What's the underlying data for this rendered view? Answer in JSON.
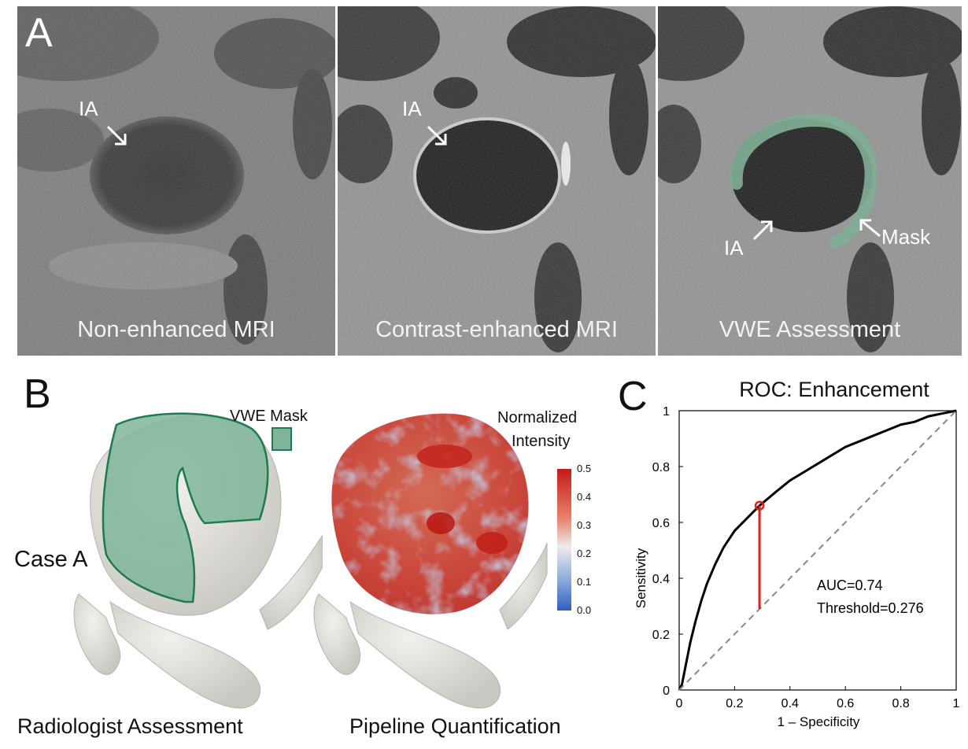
{
  "panel_a": {
    "letter": "A",
    "images": [
      {
        "caption": "Non-enhanced MRI",
        "arrow_label": "IA"
      },
      {
        "caption": "Contrast-enhanced MRI",
        "arrow_label": "IA"
      },
      {
        "caption": "VWE Assessment",
        "arrow_label": "IA",
        "mask_label": "Mask"
      }
    ]
  },
  "panel_b": {
    "letter": "B",
    "case_label": "Case A",
    "legend_label": "VWE Mask",
    "colorbar_title_1": "Normalized",
    "colorbar_title_2": "Intensity",
    "colorbar_ticks": [
      "0.5",
      "0.4",
      "0.3",
      "0.2",
      "0.1",
      "0.0"
    ],
    "left_caption": "Radiologist Assessment",
    "right_caption": "Pipeline Quantification",
    "colors": {
      "mask": "#7fb59a",
      "mask_edge": "#1f7a4f",
      "surface": "#e4e2dd",
      "high": "#c9302c",
      "low": "#4a78c8"
    }
  },
  "panel_c": {
    "letter": "C",
    "annotation_auc": "AUC=0.74",
    "annotation_threshold": "Threshold=0.276"
  },
  "chart_data": {
    "type": "line",
    "title": "ROC: Enhancement",
    "xlabel": "1 – Specificity",
    "ylabel": "Sensitivity",
    "xlim": [
      0,
      1
    ],
    "ylim": [
      0,
      1
    ],
    "xticks": [
      "0",
      "0.2",
      "0.4",
      "0.6",
      "0.8",
      "1"
    ],
    "yticks": [
      "0",
      "0.2",
      "0.4",
      "0.6",
      "0.8",
      "1"
    ],
    "series": [
      {
        "style": "solid",
        "color": "#000000",
        "x": [
          0,
          0.01,
          0.02,
          0.04,
          0.06,
          0.08,
          0.1,
          0.13,
          0.16,
          0.2,
          0.24,
          0.29,
          0.35,
          0.4,
          0.45,
          0.5,
          0.55,
          0.6,
          0.65,
          0.7,
          0.75,
          0.8,
          0.85,
          0.9,
          0.95,
          1.0
        ],
        "y": [
          0,
          0.02,
          0.07,
          0.17,
          0.25,
          0.32,
          0.38,
          0.45,
          0.51,
          0.57,
          0.61,
          0.66,
          0.71,
          0.75,
          0.78,
          0.81,
          0.84,
          0.87,
          0.89,
          0.91,
          0.93,
          0.95,
          0.96,
          0.98,
          0.99,
          1.0
        ]
      },
      {
        "style": "dashed",
        "color": "#888888",
        "x": [
          0,
          1
        ],
        "y": [
          0,
          1
        ]
      }
    ],
    "operating_point": {
      "x": 0.29,
      "y": 0.66,
      "chance_y": 0.29,
      "color": "#e0201b"
    }
  }
}
